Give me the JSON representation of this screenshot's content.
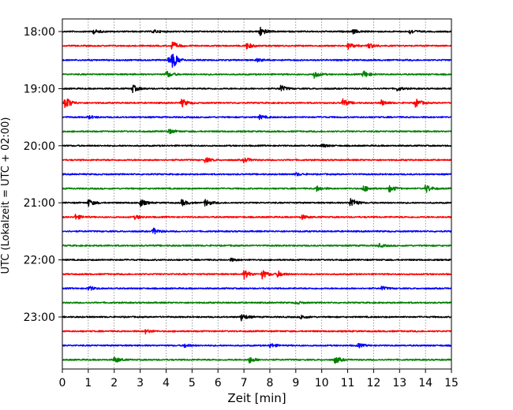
{
  "chart_data": {
    "type": "line",
    "title": "",
    "xlabel": "Zeit  [min]",
    "ylabel": "UTC (Lokalzeit = UTC + 02:00)",
    "xlim": [
      0,
      15
    ],
    "x_ticks": [
      0,
      1,
      2,
      3,
      4,
      5,
      6,
      7,
      8,
      9,
      10,
      11,
      12,
      13,
      14,
      15
    ],
    "x_tick_labels": [
      "0",
      "1",
      "2",
      "3",
      "4",
      "5",
      "6",
      "7",
      "8",
      "9",
      "10",
      "11",
      "12",
      "13",
      "14",
      "15"
    ],
    "y_tick_labels": [
      "18:00",
      "19:00",
      "20:00",
      "21:00",
      "22:00",
      "23:00"
    ],
    "grid": "vertical dotted at each minute",
    "trace_colors": [
      "#000000",
      "#ff0000",
      "#0000ff",
      "#008000"
    ],
    "trace_interval_min": 15,
    "traces": [
      {
        "start": "18:00",
        "events": [
          [
            1.2,
            0.35
          ],
          [
            3.5,
            0.3
          ],
          [
            7.6,
            0.9
          ],
          [
            11.2,
            0.35
          ],
          [
            13.4,
            0.4
          ]
        ]
      },
      {
        "start": "18:15",
        "events": [
          [
            4.2,
            0.85
          ],
          [
            7.1,
            0.55
          ],
          [
            11.0,
            0.6
          ],
          [
            11.8,
            0.55
          ]
        ]
      },
      {
        "start": "18:30",
        "events": [
          [
            4.1,
            0.9
          ],
          [
            4.25,
            1.0
          ],
          [
            7.5,
            0.3
          ]
        ]
      },
      {
        "start": "18:45",
        "events": [
          [
            4.0,
            0.6
          ],
          [
            9.7,
            0.6
          ],
          [
            11.6,
            0.65
          ]
        ]
      },
      {
        "start": "19:00",
        "events": [
          [
            2.7,
            0.65
          ],
          [
            8.4,
            0.6
          ],
          [
            12.9,
            0.35
          ]
        ]
      },
      {
        "start": "19:15",
        "events": [
          [
            0.1,
            1.2
          ],
          [
            4.6,
            0.7
          ],
          [
            10.8,
            0.7
          ],
          [
            13.6,
            0.8
          ],
          [
            12.3,
            0.45
          ]
        ]
      },
      {
        "start": "19:30",
        "events": [
          [
            7.6,
            0.35
          ],
          [
            1.0,
            0.3
          ]
        ]
      },
      {
        "start": "19:45",
        "events": [
          [
            4.1,
            0.4
          ]
        ]
      },
      {
        "start": "20:00",
        "events": [
          [
            10.0,
            0.3
          ]
        ]
      },
      {
        "start": "20:15",
        "events": [
          [
            5.5,
            0.45
          ],
          [
            7.0,
            0.45
          ]
        ]
      },
      {
        "start": "20:30",
        "events": [
          [
            9.0,
            0.25
          ]
        ]
      },
      {
        "start": "20:45",
        "events": [
          [
            9.8,
            0.5
          ],
          [
            11.6,
            0.55
          ],
          [
            12.6,
            0.6
          ],
          [
            14.0,
            0.75
          ]
        ]
      },
      {
        "start": "21:00",
        "events": [
          [
            1.0,
            0.6
          ],
          [
            3.0,
            0.65
          ],
          [
            4.6,
            0.55
          ],
          [
            5.5,
            0.6
          ],
          [
            11.1,
            1.0
          ]
        ]
      },
      {
        "start": "21:15",
        "events": [
          [
            0.5,
            0.45
          ],
          [
            2.8,
            0.35
          ],
          [
            9.2,
            0.4
          ]
        ]
      },
      {
        "start": "21:30",
        "events": [
          [
            3.5,
            0.55
          ]
        ]
      },
      {
        "start": "21:45",
        "events": [
          [
            12.2,
            0.3
          ]
        ]
      },
      {
        "start": "22:00",
        "events": [
          [
            6.5,
            0.25
          ]
        ]
      },
      {
        "start": "22:15",
        "events": [
          [
            7.0,
            0.8
          ],
          [
            7.7,
            0.75
          ],
          [
            8.3,
            0.55
          ]
        ]
      },
      {
        "start": "22:30",
        "events": [
          [
            1.0,
            0.4
          ],
          [
            12.3,
            0.35
          ]
        ]
      },
      {
        "start": "22:45",
        "events": [
          [
            9.0,
            0.25
          ]
        ]
      },
      {
        "start": "23:00",
        "events": [
          [
            6.9,
            0.6
          ],
          [
            9.2,
            0.35
          ]
        ]
      },
      {
        "start": "23:15",
        "events": [
          [
            3.2,
            0.35
          ]
        ]
      },
      {
        "start": "23:30",
        "events": [
          [
            4.7,
            0.35
          ],
          [
            8.0,
            0.4
          ],
          [
            11.4,
            0.35
          ]
        ]
      },
      {
        "start": "23:45",
        "events": [
          [
            2.0,
            0.6
          ],
          [
            7.2,
            0.55
          ],
          [
            10.5,
            0.65
          ]
        ]
      }
    ]
  }
}
